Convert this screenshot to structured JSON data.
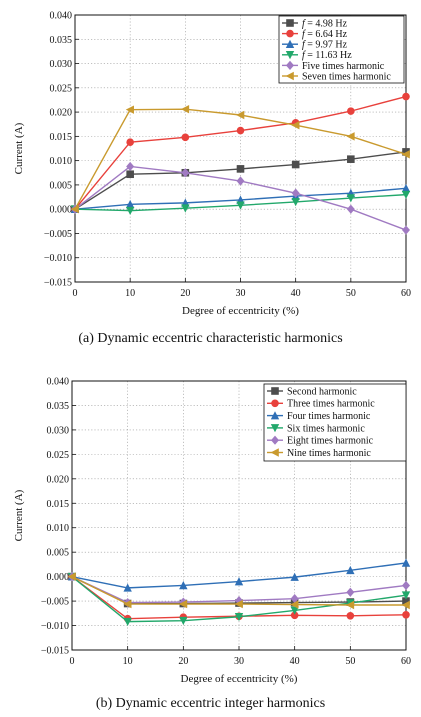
{
  "chart_data": [
    {
      "type": "line",
      "caption": "(a) Dynamic eccentric characteristic harmonics",
      "xlabel": "Degree of eccentricity (%)",
      "ylabel": "Current (A)",
      "x": [
        0,
        10,
        20,
        30,
        40,
        50,
        60
      ],
      "xlim": [
        0,
        60
      ],
      "ylim": [
        -0.015,
        0.04
      ],
      "xticks": [
        "0",
        "10",
        "20",
        "30",
        "40",
        "50",
        "60"
      ],
      "yticks": [
        "0.040",
        "0.035",
        "0.030",
        "0.025",
        "0.020",
        "0.015",
        "0.010",
        "0.005",
        "0.000",
        "−0.005",
        "−0.010",
        "−0.015"
      ],
      "grid": true,
      "legend_position": "top-right",
      "series": [
        {
          "name": "f = 4.98 Hz",
          "legend_prefix": "f",
          "legend_suffix": " = 4.98 Hz",
          "color": "#4d4d4d",
          "marker": "square",
          "values": [
            0,
            0.0072,
            0.0075,
            0.0083,
            0.0092,
            0.0103,
            0.0118
          ]
        },
        {
          "name": "f = 6.64 Hz",
          "legend_prefix": "f",
          "legend_suffix": " = 6.64 Hz",
          "color": "#e8413c",
          "marker": "circle",
          "values": [
            0,
            0.0138,
            0.0148,
            0.0162,
            0.0178,
            0.0202,
            0.0232
          ]
        },
        {
          "name": "f = 9.97 Hz",
          "legend_prefix": "f",
          "legend_suffix": " = 9.97 Hz",
          "color": "#2f6fb6",
          "marker": "triangle-up",
          "values": [
            0,
            0.001,
            0.0013,
            0.0019,
            0.0027,
            0.0033,
            0.0043
          ]
        },
        {
          "name": "f = 11.63 Hz",
          "legend_prefix": "f",
          "legend_suffix": " = 11.63 Hz",
          "color": "#22a86b",
          "marker": "triangle-down",
          "values": [
            0,
            -0.0003,
            0.0002,
            0.0008,
            0.0015,
            0.0023,
            0.003
          ]
        },
        {
          "name": "Five times harmonic",
          "legend_prefix": "",
          "legend_suffix": "Five times harmonic",
          "color": "#a07ac2",
          "marker": "diamond",
          "values": [
            0,
            0.0088,
            0.0075,
            0.0058,
            0.0033,
            0.0,
            -0.0043
          ]
        },
        {
          "name": "Seven times harmonic",
          "legend_prefix": "",
          "legend_suffix": "Seven times harmonic",
          "color": "#c99a2e",
          "marker": "triangle-left",
          "values": [
            0,
            0.0205,
            0.0206,
            0.0194,
            0.0173,
            0.015,
            0.0113
          ]
        }
      ]
    },
    {
      "type": "line",
      "caption": "(b) Dynamic eccentric integer harmonics",
      "xlabel": "Degree of eccentricity (%)",
      "ylabel": "Current (A)",
      "x": [
        0,
        10,
        20,
        30,
        40,
        50,
        60
      ],
      "xlim": [
        0,
        60
      ],
      "ylim": [
        -0.015,
        0.04
      ],
      "xticks": [
        "0",
        "10",
        "20",
        "30",
        "40",
        "50",
        "60"
      ],
      "yticks": [
        "0.040",
        "0.035",
        "0.030",
        "0.025",
        "0.020",
        "0.015",
        "0.010",
        "0.005",
        "0.000",
        "−0.005",
        "−0.010",
        "−0.015"
      ],
      "grid": true,
      "legend_position": "top-right",
      "series": [
        {
          "name": "Second harmonic",
          "legend_prefix": "",
          "legend_suffix": "Second harmonic",
          "color": "#4d4d4d",
          "marker": "square",
          "values": [
            0,
            -0.0055,
            -0.0055,
            -0.0054,
            -0.0053,
            -0.0052,
            -0.005
          ]
        },
        {
          "name": "Three times harmonic",
          "legend_prefix": "",
          "legend_suffix": "Three times harmonic",
          "color": "#e8413c",
          "marker": "circle",
          "values": [
            0,
            -0.0086,
            -0.0083,
            -0.0081,
            -0.0079,
            -0.008,
            -0.0078
          ]
        },
        {
          "name": "Four times harmonic",
          "legend_prefix": "",
          "legend_suffix": "Four times harmonic",
          "color": "#2f6fb6",
          "marker": "triangle-up",
          "values": [
            0,
            -0.0023,
            -0.0018,
            -0.001,
            -0.0001,
            0.0013,
            0.0028
          ]
        },
        {
          "name": "Six times harmonic",
          "legend_prefix": "",
          "legend_suffix": "Six times harmonic",
          "color": "#22a86b",
          "marker": "triangle-down",
          "values": [
            0,
            -0.0092,
            -0.009,
            -0.0082,
            -0.0069,
            -0.0054,
            -0.0038
          ]
        },
        {
          "name": "Eight times harmonic",
          "legend_prefix": "",
          "legend_suffix": "Eight times harmonic",
          "color": "#a07ac2",
          "marker": "diamond",
          "values": [
            0,
            -0.0053,
            -0.0052,
            -0.0049,
            -0.0045,
            -0.0032,
            -0.0018
          ]
        },
        {
          "name": "Nine times harmonic",
          "legend_prefix": "",
          "legend_suffix": "Nine times harmonic",
          "color": "#c99a2e",
          "marker": "triangle-left",
          "values": [
            0,
            -0.0056,
            -0.0056,
            -0.0056,
            -0.0057,
            -0.0058,
            -0.0058
          ]
        }
      ]
    }
  ]
}
